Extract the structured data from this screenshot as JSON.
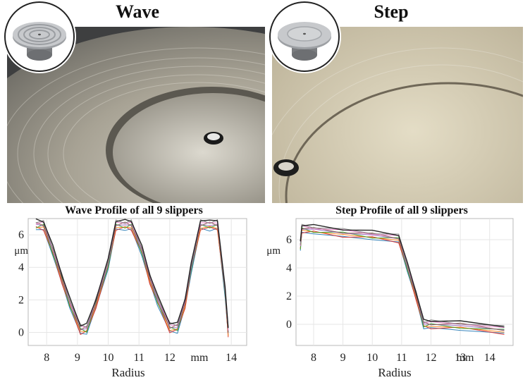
{
  "panels": {
    "left_title": "Wave",
    "right_title": "Step"
  },
  "chart_data": [
    {
      "type": "line",
      "title": "Wave Profile of all 9 slippers",
      "xlabel": "Radius",
      "ylabel": "μm",
      "x_unit_label": "mm",
      "xticks": [
        8,
        9,
        10,
        11,
        12,
        14
      ],
      "yticks": [
        0,
        2,
        4,
        6
      ],
      "xlim": [
        7.4,
        14.5
      ],
      "ylim": [
        -0.8,
        7.0
      ],
      "grid": true,
      "series_count": 9,
      "series": [
        {
          "x": [
            7.65,
            7.9,
            8.2,
            8.5,
            8.75,
            9.1,
            9.3,
            9.6,
            10.0,
            10.25,
            10.55,
            10.75,
            11.1,
            11.35,
            11.6,
            12.0,
            12.25,
            12.5,
            12.7,
            13.0,
            13.3,
            13.55,
            13.8,
            13.9
          ],
          "y": [
            6.6,
            6.6,
            5.0,
            3.3,
            1.8,
            0.2,
            0.2,
            1.8,
            4.2,
            6.6,
            6.6,
            6.6,
            5.0,
            3.3,
            2.0,
            0.3,
            0.3,
            1.8,
            4.0,
            6.6,
            6.6,
            6.6,
            2.5,
            0.0
          ]
        }
      ]
    },
    {
      "type": "line",
      "title": "Step Profile of all 9 slippers",
      "xlabel": "Radius",
      "ylabel": "μm",
      "x_unit_label": "mm",
      "xticks": [
        8,
        9,
        10,
        11,
        12,
        13,
        14
      ],
      "yticks": [
        0,
        2,
        4,
        6
      ],
      "xlim": [
        7.4,
        14.8
      ],
      "ylim": [
        -1.5,
        7.5
      ],
      "grid": true,
      "series_count": 9,
      "series": [
        {
          "x": [
            7.55,
            7.6,
            8.0,
            9.0,
            10.0,
            10.9,
            11.2,
            11.5,
            11.75,
            12.0,
            13.0,
            14.5
          ],
          "y": [
            5.5,
            6.8,
            6.7,
            6.5,
            6.3,
            6.1,
            4.0,
            2.0,
            0.0,
            0.0,
            -0.1,
            -0.4
          ]
        }
      ]
    }
  ]
}
